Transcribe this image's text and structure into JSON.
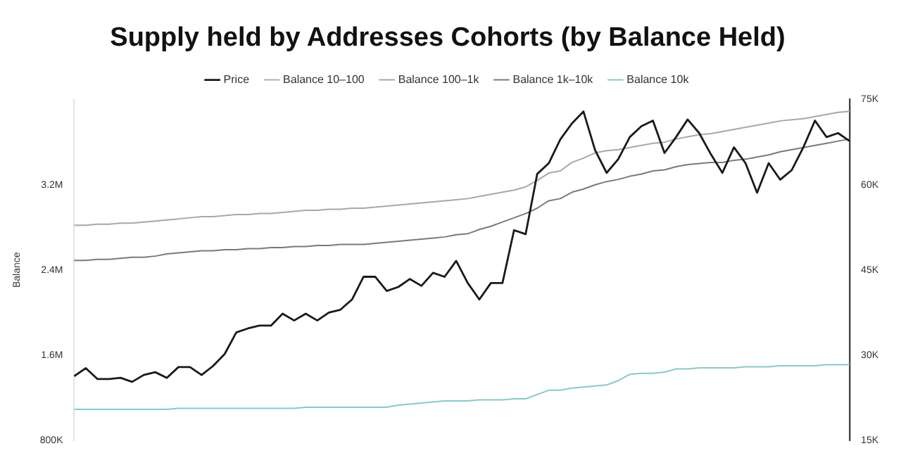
{
  "chart_data": {
    "type": "line",
    "title": "Supply held by Addresses Cohorts (by Balance Held)",
    "ylabel": "Balance",
    "categories": [
      null,
      null,
      null,
      null,
      null,
      null,
      null,
      null,
      null,
      null,
      null,
      null,
      null,
      null,
      null,
      null,
      null,
      null,
      null,
      null,
      null,
      null,
      null,
      null,
      null,
      null,
      null,
      null,
      null,
      null,
      null,
      null,
      null,
      null,
      null,
      null,
      null,
      null,
      null,
      null,
      null,
      null,
      null,
      null,
      null,
      null,
      null,
      null,
      null,
      null,
      null,
      null,
      null,
      null,
      null,
      null,
      null,
      null,
      null,
      null,
      null,
      null,
      null,
      null,
      null,
      null,
      null,
      null
    ],
    "series": [
      {
        "name": "Price",
        "color": "#1a1a1a",
        "axis": "y2",
        "values": [
          26300,
          27700,
          25800,
          25800,
          26000,
          25300,
          26500,
          27000,
          26000,
          27900,
          27900,
          26500,
          28100,
          30200,
          34000,
          34700,
          35200,
          35200,
          37300,
          36100,
          37300,
          36100,
          37500,
          38000,
          39800,
          43800,
          43800,
          41300,
          42000,
          43400,
          42200,
          44500,
          43800,
          46600,
          42700,
          39800,
          42700,
          42700,
          52000,
          51300,
          61900,
          63800,
          68000,
          70800,
          72900,
          66100,
          62100,
          64500,
          68400,
          70300,
          71300,
          65600,
          68400,
          71500,
          69100,
          65400,
          62100,
          66600,
          63800,
          58600,
          63800,
          60900,
          62600,
          66600,
          71300,
          68400,
          69100,
          67700
        ]
      },
      {
        "name": "Balance 10–100",
        "color": "#b0b0b0",
        "values": [
          null,
          null,
          null,
          null,
          null,
          null,
          null,
          null,
          null,
          null,
          null,
          null,
          null,
          null,
          null,
          null,
          null,
          null,
          null,
          null,
          null,
          null,
          null,
          null,
          null,
          null,
          null,
          null,
          null,
          null,
          null,
          null,
          null,
          null,
          null,
          null,
          null,
          null,
          null,
          null,
          null,
          null,
          null,
          null,
          null,
          null,
          null,
          null,
          null,
          null,
          null,
          null,
          null,
          null,
          null,
          null,
          null,
          null,
          null,
          null,
          null,
          null,
          null,
          null,
          null,
          null,
          null,
          null
        ]
      },
      {
        "name": "Balance 100–1k",
        "color": "#a8a8a8",
        "values": [
          2820000,
          2820000,
          2830000,
          2830000,
          2840000,
          2840000,
          2850000,
          2860000,
          2870000,
          2880000,
          2890000,
          2900000,
          2900000,
          2910000,
          2920000,
          2920000,
          2930000,
          2930000,
          2940000,
          2950000,
          2960000,
          2960000,
          2970000,
          2970000,
          2980000,
          2980000,
          2990000,
          3000000,
          3010000,
          3020000,
          3030000,
          3040000,
          3050000,
          3060000,
          3070000,
          3090000,
          3110000,
          3130000,
          3150000,
          3180000,
          3240000,
          3310000,
          3330000,
          3410000,
          3450000,
          3500000,
          3520000,
          3530000,
          3550000,
          3570000,
          3590000,
          3600000,
          3630000,
          3650000,
          3670000,
          3680000,
          3700000,
          3720000,
          3740000,
          3760000,
          3780000,
          3800000,
          3810000,
          3820000,
          3840000,
          3860000,
          3880000,
          3890000
        ]
      },
      {
        "name": "Balance 1k–10k",
        "color": "#7a7a7a",
        "values": [
          2490000,
          2490000,
          2500000,
          2500000,
          2510000,
          2520000,
          2520000,
          2530000,
          2550000,
          2560000,
          2570000,
          2580000,
          2580000,
          2590000,
          2590000,
          2600000,
          2600000,
          2610000,
          2610000,
          2620000,
          2620000,
          2630000,
          2630000,
          2640000,
          2640000,
          2640000,
          2650000,
          2660000,
          2670000,
          2680000,
          2690000,
          2700000,
          2710000,
          2730000,
          2740000,
          2780000,
          2810000,
          2850000,
          2890000,
          2930000,
          2980000,
          3050000,
          3070000,
          3130000,
          3160000,
          3200000,
          3230000,
          3250000,
          3280000,
          3300000,
          3330000,
          3340000,
          3370000,
          3390000,
          3400000,
          3410000,
          3410000,
          3430000,
          3440000,
          3460000,
          3480000,
          3510000,
          3530000,
          3550000,
          3570000,
          3590000,
          3610000,
          3630000
        ]
      },
      {
        "name": "Balance 10k",
        "color": "#8cc8c8",
        "values": [
          1090000,
          1090000,
          1090000,
          1090000,
          1090000,
          1090000,
          1090000,
          1090000,
          1090000,
          1100000,
          1100000,
          1100000,
          1100000,
          1100000,
          1100000,
          1100000,
          1100000,
          1100000,
          1100000,
          1100000,
          1110000,
          1110000,
          1110000,
          1110000,
          1110000,
          1110000,
          1110000,
          1110000,
          1130000,
          1140000,
          1150000,
          1160000,
          1170000,
          1170000,
          1170000,
          1180000,
          1180000,
          1180000,
          1190000,
          1190000,
          1230000,
          1270000,
          1270000,
          1290000,
          1300000,
          1310000,
          1320000,
          1360000,
          1420000,
          1430000,
          1430000,
          1440000,
          1470000,
          1470000,
          1480000,
          1480000,
          1480000,
          1480000,
          1490000,
          1490000,
          1490000,
          1500000,
          1500000,
          1500000,
          1500000,
          1510000,
          1510000,
          1510000
        ]
      }
    ],
    "ylim": [
      800000,
      4000000
    ],
    "yticks": [
      {
        "value": 800000,
        "label": "800K"
      },
      {
        "value": 1600000,
        "label": "1.6M"
      },
      {
        "value": 2400000,
        "label": "2.4M"
      },
      {
        "value": 3200000,
        "label": "3.2M"
      }
    ],
    "y2lim": [
      15000,
      75000
    ],
    "y2ticks": [
      {
        "value": 15000,
        "label": "15K"
      },
      {
        "value": 30000,
        "label": "30K"
      },
      {
        "value": 45000,
        "label": "45K"
      },
      {
        "value": 60000,
        "label": "60K"
      },
      {
        "value": 75000,
        "label": "75K"
      }
    ],
    "legend": "top",
    "grid": false,
    "marker": "none",
    "line_style": "solid"
  }
}
